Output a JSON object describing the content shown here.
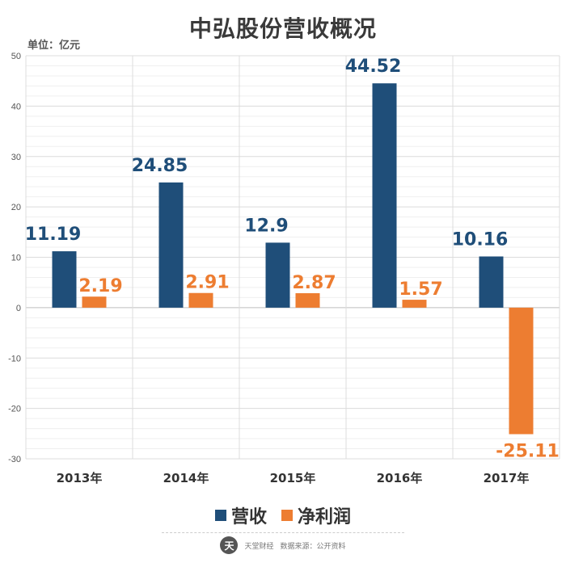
{
  "chart_data": {
    "type": "bar",
    "title": "中弘股份营收概况",
    "unit_label": "单位：亿元",
    "categories": [
      "2013年",
      "2014年",
      "2015年",
      "2016年",
      "2017年"
    ],
    "series": [
      {
        "name": "营收",
        "color": "#1f4e79",
        "values": [
          11.19,
          24.85,
          12.9,
          44.52,
          10.16
        ],
        "labels": [
          "11.19",
          "24.85",
          "12.9",
          "44.52",
          "10.16"
        ]
      },
      {
        "name": "净利润",
        "color": "#ed7d31",
        "values": [
          2.19,
          2.91,
          2.87,
          1.57,
          -25.11
        ],
        "labels": [
          "2.19",
          "2.91",
          "2.87",
          "1.57",
          "-25.11"
        ]
      }
    ],
    "ylim": [
      -30,
      50
    ],
    "yticks": [
      -30,
      -20,
      -10,
      0,
      10,
      20,
      30,
      40,
      50
    ],
    "grid": true,
    "legend_position": "bottom"
  },
  "footer": {
    "logo_text": "天",
    "brand": "天堂财经",
    "source": "数据来源：公开资料"
  }
}
